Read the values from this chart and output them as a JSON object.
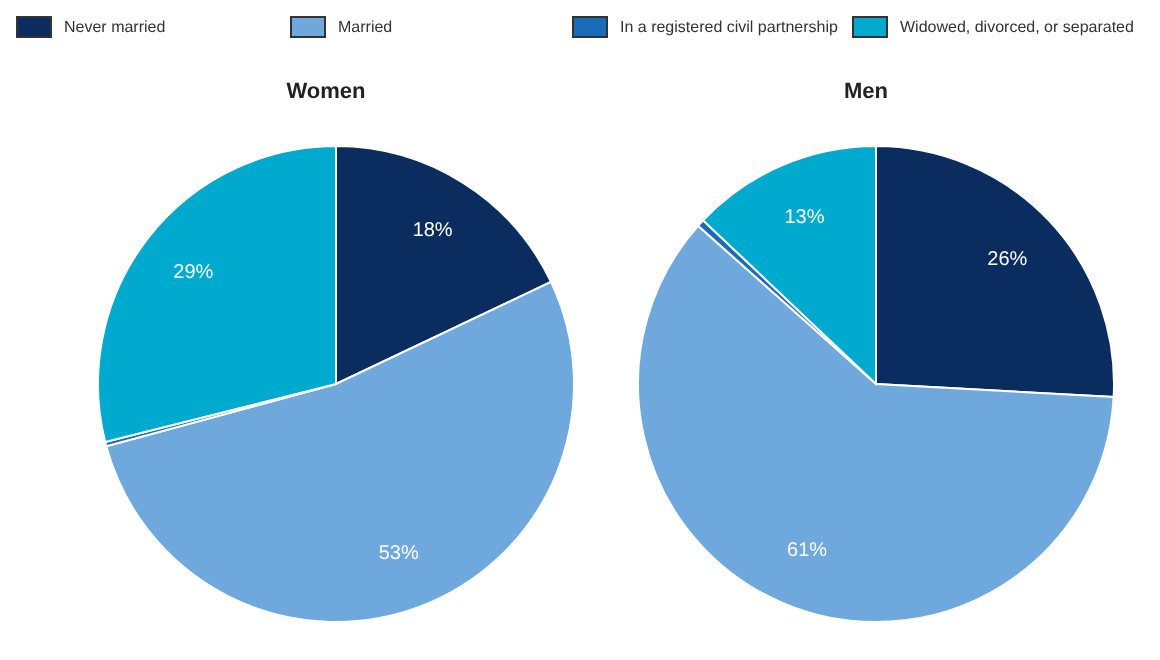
{
  "chart_data": [
    {
      "type": "pie",
      "title": "Women",
      "categories": [
        "Never married",
        "Married",
        "In a registered civil partnership",
        "Widowed, divorced, or separated"
      ],
      "values": [
        18,
        53,
        0.3,
        29
      ],
      "colors": [
        "#0b2c5f",
        "#6fa8dc",
        "#1a6bb8",
        "#00a9ce"
      ],
      "value_labels": [
        "18%",
        "53%",
        null,
        "29%"
      ],
      "legend": "top"
    },
    {
      "type": "pie",
      "title": "Men",
      "values": [
        26,
        61,
        0.5,
        13
      ],
      "colors": [
        "#0b2c5f",
        "#6fa8dc",
        "#1a6bb8",
        "#00a9ce"
      ],
      "value_labels": [
        "26%",
        "61%",
        null,
        "13%"
      ]
    }
  ]
}
